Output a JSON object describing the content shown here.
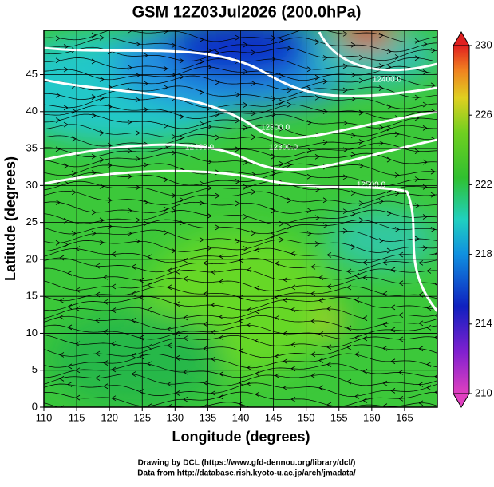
{
  "chart_data": {
    "type": "map",
    "title": "GSM 12Z03Jul2026 (200.0hPa)",
    "x_label": "Longitude (degrees)",
    "y_label": "Latitude  (degrees)",
    "xlim": [
      110,
      170
    ],
    "ylim": [
      0,
      51
    ],
    "xticks": [
      110,
      115,
      120,
      125,
      130,
      135,
      140,
      145,
      150,
      155,
      160,
      165
    ],
    "yticks": [
      0,
      5,
      10,
      15,
      20,
      25,
      30,
      35,
      40,
      45
    ],
    "grid": true,
    "colorbar": {
      "lim": [
        210,
        230
      ],
      "ticks": [
        210,
        214,
        218,
        222,
        226,
        230
      ]
    },
    "contour_labels": [
      "12300.0",
      "12400.0",
      "12300.0",
      "12400.0",
      "12500.0"
    ],
    "footer": [
      "Drawing by DCL (https://www.gfd-dennou.org/library/dcl/)",
      "Data from http://database.rish.kyoto-u.ac.jp/arch/jmadata/"
    ]
  }
}
